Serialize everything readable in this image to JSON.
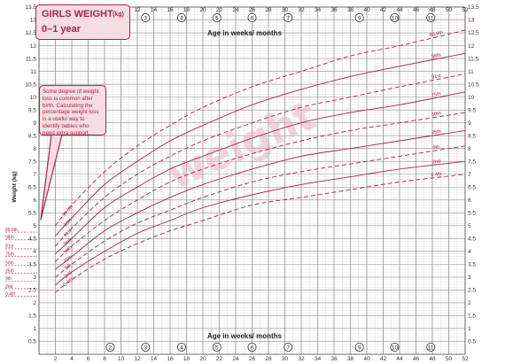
{
  "title": "GIRLS WEIGHT",
  "title_unit": "(kg)",
  "subtitle": "0–1 year",
  "note": "Some degree of weight loss is common after birth. Calculating the percentage weight loss is a useful way to identify babies who need extra support.",
  "watermark": "weight",
  "colors": {
    "curve": "#a8234a",
    "grid_major": "#8a8a8a",
    "grid_minor": "#d4d4d4",
    "box_fill": "#f5dde3"
  },
  "chart_data": {
    "type": "line",
    "title": "GIRLS WEIGHT (kg) 0–1 year",
    "xlabel": "Age in weeks/ months",
    "ylabel": "Weight (kg)",
    "xlim": [
      0,
      52
    ],
    "ylim": [
      0,
      13.5
    ],
    "x_ticks": [
      2,
      4,
      6,
      8,
      10,
      12,
      14,
      16,
      18,
      20,
      22,
      24,
      26,
      28,
      30,
      32,
      34,
      36,
      38,
      40,
      42,
      44,
      46,
      48,
      50,
      52
    ],
    "y_ticks": [
      "0.5",
      "1",
      "1.5",
      "2",
      "2.5",
      "3",
      "3.5",
      "4",
      "4.5",
      "5",
      "5.5",
      "6",
      "6.5",
      "7",
      "7.5",
      "8",
      "8.5",
      "9",
      "9.5",
      "10",
      "10.5",
      "11",
      "11.5",
      "12",
      "12.5",
      "13",
      "13.5"
    ],
    "month_markers": [
      {
        "label": "2",
        "week": 8.7
      },
      {
        "label": "3",
        "week": 13
      },
      {
        "label": "4",
        "week": 17.4
      },
      {
        "label": "5",
        "week": 21.7
      },
      {
        "label": "6",
        "week": 26
      },
      {
        "label": "7",
        "week": 30.4
      },
      {
        "label": "9",
        "week": 39.1
      },
      {
        "label": "10",
        "week": 43.4
      },
      {
        "label": "11",
        "week": 47.8
      }
    ],
    "x": [
      2,
      4,
      8,
      12,
      16,
      20,
      26,
      32,
      38,
      44,
      52
    ],
    "series": [
      {
        "name": "99.6th",
        "dashed": true,
        "values": [
          5.0,
          5.8,
          7.1,
          8.1,
          8.9,
          9.6,
          10.4,
          11.0,
          11.6,
          12.0,
          12.6
        ]
      },
      {
        "name": "98th",
        "dashed": false,
        "values": [
          4.6,
          5.3,
          6.6,
          7.5,
          8.3,
          8.9,
          9.7,
          10.3,
          10.8,
          11.2,
          11.7
        ]
      },
      {
        "name": "91st",
        "dashed": true,
        "values": [
          4.2,
          4.9,
          6.1,
          7.0,
          7.7,
          8.3,
          9.0,
          9.6,
          10.0,
          10.4,
          10.9
        ]
      },
      {
        "name": "75th",
        "dashed": false,
        "values": [
          3.9,
          4.5,
          5.7,
          6.5,
          7.2,
          7.7,
          8.4,
          9.0,
          9.4,
          9.7,
          10.2
        ]
      },
      {
        "name": "50th",
        "dashed": true,
        "values": [
          3.6,
          4.2,
          5.2,
          6.0,
          6.7,
          7.2,
          7.8,
          8.3,
          8.7,
          9.0,
          9.4
        ]
      },
      {
        "name": "25th",
        "dashed": false,
        "values": [
          3.3,
          3.8,
          4.8,
          5.5,
          6.1,
          6.6,
          7.2,
          7.7,
          8.0,
          8.3,
          8.7
        ]
      },
      {
        "name": "9th",
        "dashed": true,
        "values": [
          3.0,
          3.5,
          4.4,
          5.1,
          5.6,
          6.1,
          6.7,
          7.1,
          7.4,
          7.7,
          8.1
        ]
      },
      {
        "name": "2nd",
        "dashed": false,
        "values": [
          2.7,
          3.2,
          4.0,
          4.7,
          5.2,
          5.7,
          6.2,
          6.6,
          6.9,
          7.2,
          7.5
        ]
      },
      {
        "name": "0.4th",
        "dashed": true,
        "values": [
          2.4,
          2.9,
          3.7,
          4.3,
          4.8,
          5.2,
          5.8,
          6.1,
          6.4,
          6.7,
          7.0
        ]
      }
    ],
    "birth_percentiles": [
      {
        "name": "99.6th",
        "value": 4.75
      },
      {
        "name": "98th",
        "value": 4.45
      },
      {
        "name": "91st",
        "value": 4.1
      },
      {
        "name": "75th",
        "value": 3.8
      },
      {
        "name": "50th",
        "value": 3.45
      },
      {
        "name": "25th",
        "value": 3.15
      },
      {
        "name": "9th",
        "value": 2.85
      },
      {
        "name": "2nd",
        "value": 2.55
      },
      {
        "name": "0.4th",
        "value": 2.25
      }
    ],
    "grid": true,
    "legend": "none"
  }
}
